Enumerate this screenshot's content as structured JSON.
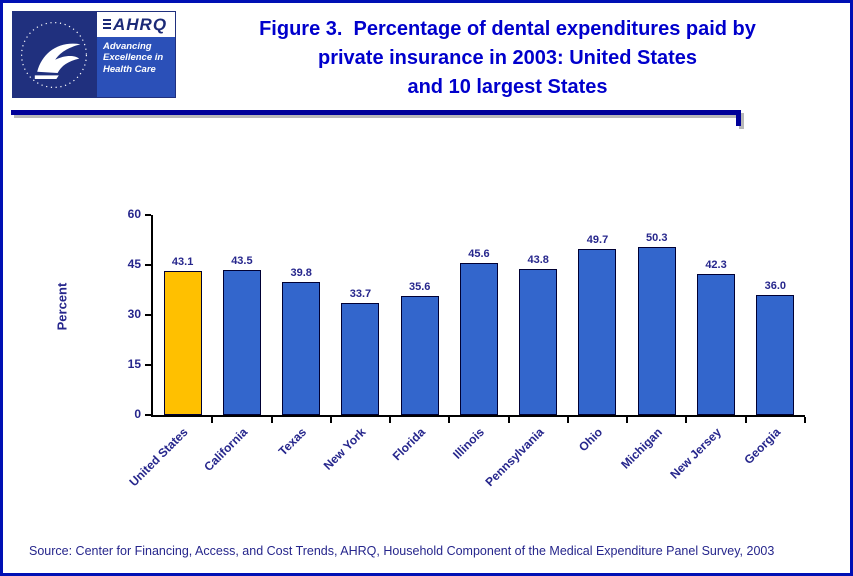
{
  "header": {
    "title_lines": [
      "Figure 3.  Percentage of dental expenditures paid by",
      "private insurance in 2003: United States",
      "and 10 largest States"
    ],
    "logo": {
      "ahrq_acronym": "AHRQ",
      "ahrq_tagline": "Advancing Excellence in Health Care"
    }
  },
  "chart_data": {
    "type": "bar",
    "title": "Figure 3. Percentage of dental expenditures paid by private insurance in 2003: United States and 10 largest States",
    "categories": [
      "United States",
      "California",
      "Texas",
      "New York",
      "Florida",
      "Illinois",
      "Pennsylvania",
      "Ohio",
      "Michigan",
      "New Jersey",
      "Georgia"
    ],
    "values": [
      43.1,
      43.5,
      39.8,
      33.7,
      35.6,
      45.6,
      43.8,
      49.7,
      50.3,
      42.3,
      36.0
    ],
    "xlabel": "",
    "ylabel": "Percent",
    "ylim": [
      0,
      60
    ],
    "yticks": [
      0,
      15,
      30,
      45,
      60
    ],
    "grid": false,
    "legend": "none",
    "highlight_index": 0,
    "bar_colors": {
      "highlight": "#FFC000",
      "default": "#3366CC"
    }
  },
  "footer": {
    "source": "Source: Center for Financing, Access, and Cost Trends, AHRQ, Household Component of the Medical Expenditure Panel Survey, 2003"
  },
  "colors": {
    "title_blue": "#0000CC",
    "divider_navy": "#000099",
    "label_navy": "#26268C",
    "bar_blue": "#3366CC",
    "bar_gold": "#FFC000"
  }
}
